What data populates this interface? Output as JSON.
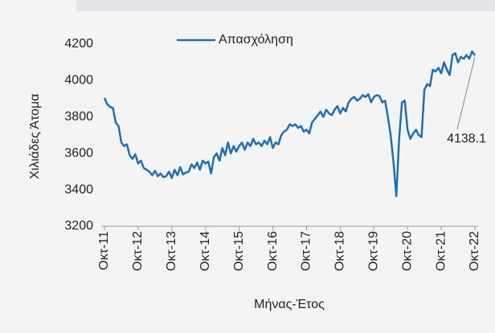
{
  "chart_data": {
    "type": "line",
    "series": [
      {
        "name": "Απασχόληση",
        "color": "#1f6fb4",
        "values": [
          3905,
          3870,
          3855,
          3850,
          3770,
          3750,
          3660,
          3640,
          3650,
          3590,
          3570,
          3595,
          3545,
          3560,
          3520,
          3510,
          3500,
          3480,
          3505,
          3475,
          3490,
          3470,
          3475,
          3500,
          3465,
          3510,
          3480,
          3525,
          3485,
          3495,
          3500,
          3540,
          3520,
          3550,
          3510,
          3560,
          3545,
          3555,
          3490,
          3580,
          3600,
          3560,
          3630,
          3590,
          3660,
          3600,
          3640,
          3610,
          3640,
          3660,
          3620,
          3660,
          3640,
          3680,
          3650,
          3660,
          3640,
          3670,
          3650,
          3690,
          3630,
          3660,
          3650,
          3700,
          3720,
          3730,
          3760,
          3750,
          3760,
          3740,
          3750,
          3720,
          3730,
          3710,
          3770,
          3790,
          3810,
          3830,
          3800,
          3840,
          3820,
          3810,
          3840,
          3860,
          3820,
          3850,
          3830,
          3880,
          3900,
          3910,
          3890,
          3900,
          3920,
          3910,
          3925,
          3880,
          3910,
          3920,
          3915,
          3880,
          3890,
          3800,
          3700,
          3550,
          3365,
          3680,
          3880,
          3890,
          3730,
          3680,
          3710,
          3730,
          3700,
          3690,
          3950,
          3980,
          3970,
          4060,
          4050,
          4070,
          4040,
          4100,
          4060,
          4030,
          4140,
          4150,
          4100,
          4130,
          4120,
          4140,
          4120,
          4160,
          4138.1
        ]
      }
    ],
    "categories": [
      "Οκτ-11",
      null,
      null,
      null,
      null,
      null,
      null,
      null,
      null,
      null,
      null,
      null,
      "Οκτ-12",
      null,
      null,
      null,
      null,
      null,
      null,
      null,
      null,
      null,
      null,
      null,
      "Οκτ-13",
      null,
      null,
      null,
      null,
      null,
      null,
      null,
      null,
      null,
      null,
      null,
      "Οκτ-14",
      null,
      null,
      null,
      null,
      null,
      null,
      null,
      null,
      null,
      null,
      null,
      "Οκτ-15",
      null,
      null,
      null,
      null,
      null,
      null,
      null,
      null,
      null,
      null,
      null,
      "Οκτ-16",
      null,
      null,
      null,
      null,
      null,
      null,
      null,
      null,
      null,
      null,
      null,
      "Οκτ-17",
      null,
      null,
      null,
      null,
      null,
      null,
      null,
      null,
      null,
      null,
      null,
      "Οκτ-18",
      null,
      null,
      null,
      null,
      null,
      null,
      null,
      null,
      null,
      null,
      null,
      "Οκτ-19",
      null,
      null,
      null,
      null,
      null,
      null,
      null,
      null,
      null,
      null,
      null,
      "Οκτ-20",
      null,
      null,
      null,
      null,
      null,
      null,
      null,
      null,
      null,
      null,
      null,
      "Οκτ-21",
      null,
      null,
      null,
      null,
      null,
      null,
      null,
      null,
      null,
      null,
      null,
      "Οκτ-22"
    ],
    "ylim": [
      3200,
      4200
    ],
    "yticks": [
      3200,
      3400,
      3600,
      3800,
      4000,
      4200
    ],
    "y_label": "Χιλιάδες Άτομα",
    "x_label": "Μήνας-Έτος",
    "legend": "top"
  }
}
